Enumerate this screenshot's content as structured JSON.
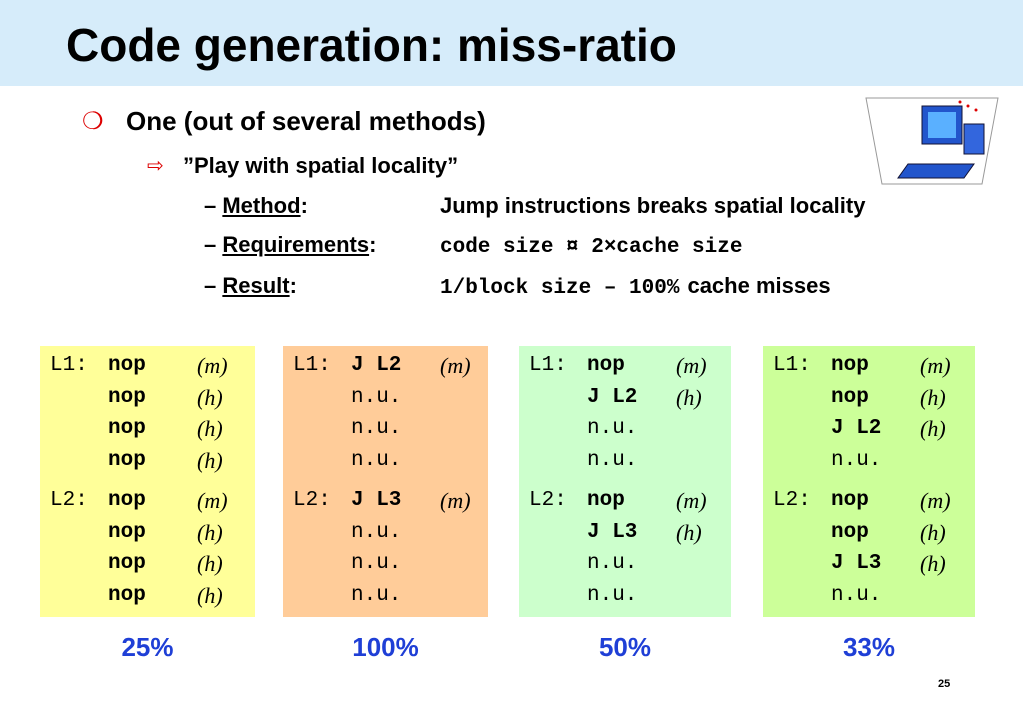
{
  "title": "Code generation: miss-ratio",
  "bullet": "One (out of several methods)",
  "sub_bullet": "”Play with spatial locality”",
  "items": [
    {
      "label": "Method",
      "colon": ":",
      "parts": [
        {
          "text": "Jump instructions breaks spatial locality",
          "mono": false
        }
      ]
    },
    {
      "label": "Requirements",
      "colon": ":",
      "parts": [
        {
          "text": "code size ¤ 2×cache size",
          "mono": true
        }
      ]
    },
    {
      "label": "Result",
      "colon": ":",
      "parts": [
        {
          "text": "1/block size – 100%",
          "mono": true
        },
        {
          "text": "cache misses",
          "mono": false
        }
      ]
    }
  ],
  "boxes": [
    {
      "color": "#ffff99",
      "ratio": "25%",
      "blocks": [
        {
          "label": "L1:",
          "lines": [
            {
              "instr": "nop",
              "mark": "(m)"
            },
            {
              "instr": "nop",
              "mark": "(h)"
            },
            {
              "instr": "nop",
              "mark": "(h)"
            },
            {
              "instr": "nop",
              "mark": "(h)"
            }
          ]
        },
        {
          "label": "L2:",
          "lines": [
            {
              "instr": "nop",
              "mark": "(m)"
            },
            {
              "instr": "nop",
              "mark": "(h)"
            },
            {
              "instr": "nop",
              "mark": "(h)"
            },
            {
              "instr": "nop",
              "mark": "(h)"
            }
          ]
        }
      ]
    },
    {
      "color": "#ffcc99",
      "ratio": "100%",
      "blocks": [
        {
          "label": "L1:",
          "lines": [
            {
              "instr": "J L2",
              "mark": "(m)"
            },
            {
              "instr": "n.u."
            },
            {
              "instr": "n.u."
            },
            {
              "instr": "n.u."
            }
          ]
        },
        {
          "label": "L2:",
          "lines": [
            {
              "instr": "J L3",
              "mark": "(m)"
            },
            {
              "instr": "n.u."
            },
            {
              "instr": "n.u."
            },
            {
              "instr": "n.u."
            }
          ]
        }
      ]
    },
    {
      "color": "#ccffcc",
      "ratio": "50%",
      "blocks": [
        {
          "label": "L1:",
          "lines": [
            {
              "instr": "nop",
              "mark": "(m)"
            },
            {
              "instr": "J L2",
              "mark": "(h)"
            },
            {
              "instr": "n.u."
            },
            {
              "instr": "n.u."
            }
          ]
        },
        {
          "label": "L2:",
          "lines": [
            {
              "instr": "nop",
              "mark": "(m)"
            },
            {
              "instr": "J L3",
              "mark": "(h)"
            },
            {
              "instr": "n.u."
            },
            {
              "instr": "n.u."
            }
          ]
        }
      ]
    },
    {
      "color": "#ccff99",
      "ratio": "33%",
      "blocks": [
        {
          "label": "L1:",
          "lines": [
            {
              "instr": "nop",
              "mark": "(m)"
            },
            {
              "instr": "nop",
              "mark": "(h)"
            },
            {
              "instr": "J L2",
              "mark": "(h)"
            },
            {
              "instr": "n.u."
            }
          ]
        },
        {
          "label": "L2:",
          "lines": [
            {
              "instr": "nop",
              "mark": "(m)"
            },
            {
              "instr": "nop",
              "mark": "(h)"
            },
            {
              "instr": "J L3",
              "mark": "(h)"
            },
            {
              "instr": "n.u."
            }
          ]
        }
      ]
    }
  ],
  "page_number": "25"
}
